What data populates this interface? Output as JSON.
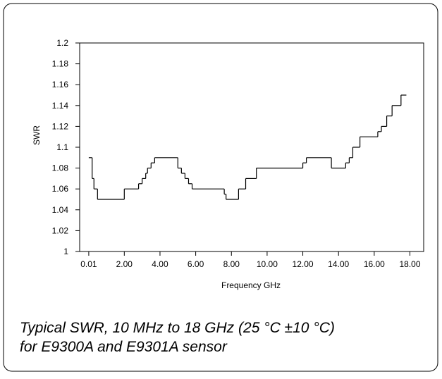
{
  "chart_data": {
    "type": "step",
    "caption": [
      "Typical SWR, 10 MHz to 18 GHz (25 °C ±10 °C)",
      "for E9300A and E9301A sensor"
    ],
    "xlabel": "Frequency GHz",
    "ylabel": "SWR",
    "xlim": [
      -0.5,
      18.77
    ],
    "ylim": [
      1,
      1.2
    ],
    "xticks": [
      {
        "value": 0.01,
        "label": "0.01"
      },
      {
        "value": 2,
        "label": "2.00"
      },
      {
        "value": 4,
        "label": "4.00"
      },
      {
        "value": 6,
        "label": "6.00"
      },
      {
        "value": 8,
        "label": "8.00"
      },
      {
        "value": 10,
        "label": "10.00"
      },
      {
        "value": 12,
        "label": "12.00"
      },
      {
        "value": 14,
        "label": "14.00"
      },
      {
        "value": 16,
        "label": "16.00"
      },
      {
        "value": 18,
        "label": "18.00"
      }
    ],
    "yticks": [
      1,
      1.02,
      1.04,
      1.06,
      1.08,
      1.1,
      1.12,
      1.14,
      1.16,
      1.18,
      1.2
    ],
    "grid": false,
    "series": [
      {
        "name": "SWR",
        "color": "#000000",
        "x": [
          0.01,
          0.2,
          0.3,
          0.5,
          2.0,
          2.8,
          3.0,
          3.2,
          3.3,
          3.5,
          3.7,
          5.0,
          5.2,
          5.4,
          5.6,
          5.8,
          7.6,
          7.7,
          8.4,
          8.8,
          9.4,
          12.0,
          12.2,
          13.6,
          14.4,
          14.6,
          14.8,
          15.2,
          16.2,
          16.4,
          16.7,
          17.0,
          17.5,
          17.8
        ],
        "values": [
          1.09,
          1.07,
          1.06,
          1.05,
          1.06,
          1.065,
          1.07,
          1.075,
          1.08,
          1.085,
          1.09,
          1.08,
          1.075,
          1.07,
          1.065,
          1.06,
          1.055,
          1.05,
          1.06,
          1.07,
          1.08,
          1.085,
          1.09,
          1.08,
          1.085,
          1.09,
          1.1,
          1.11,
          1.115,
          1.12,
          1.13,
          1.14,
          1.15,
          1.15
        ]
      }
    ]
  }
}
